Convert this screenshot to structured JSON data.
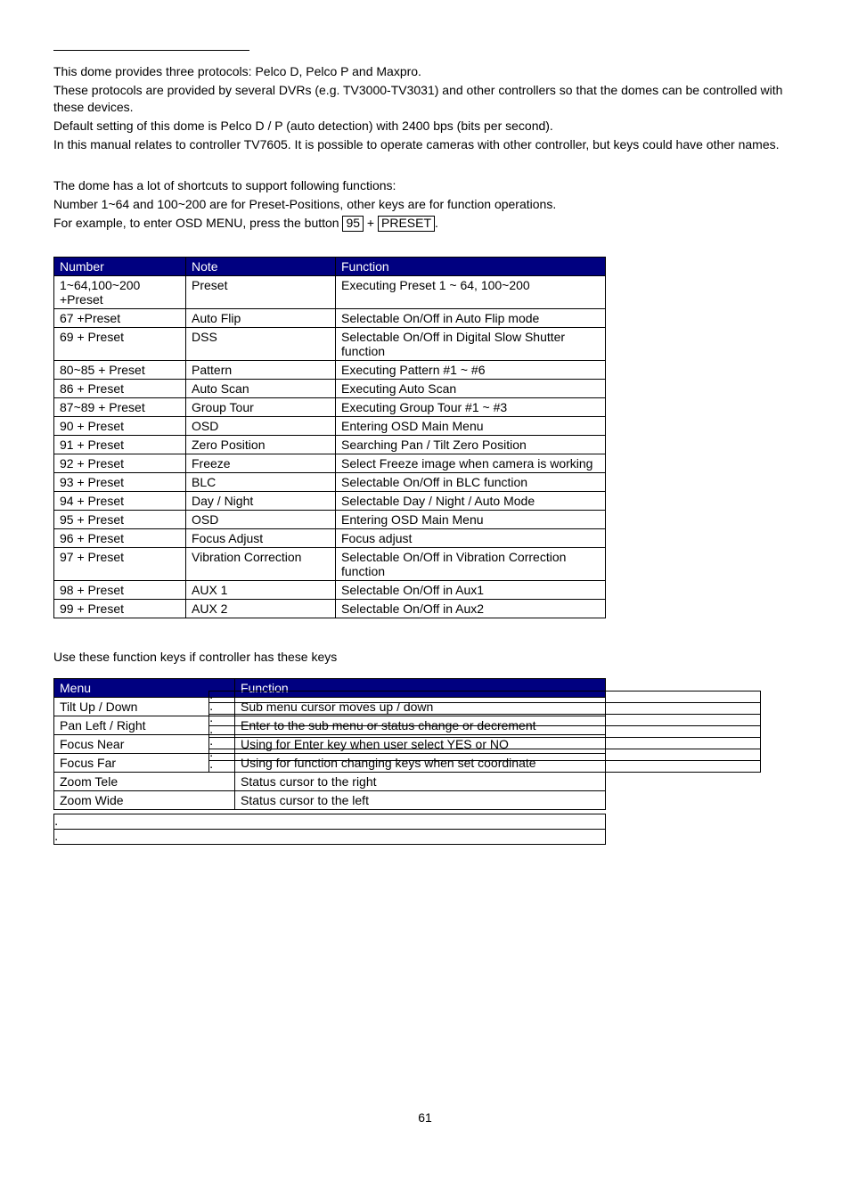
{
  "intro": {
    "p1": "This dome provides three protocols: Pelco D, Pelco P and Maxpro.",
    "p2": "These protocols are provided by several DVRs (e.g. TV3000-TV3031) and other controllers so that the domes can be controlled with these devices.",
    "p3": "Default setting of this dome is Pelco D / P (auto detection) with 2400 bps (bits per second).",
    "p4": "In this manual relates to controller TV7605. It is possible to operate cameras with other controller, but keys could have other names."
  },
  "shortcuts_intro": {
    "p1": "The dome has a lot of shortcuts to support following functions:",
    "p2": "Number 1~64 and 100~200 are for Preset-Positions, other keys are for function operations.",
    "p3a": "For example, to enter OSD MENU, press the button ",
    "p3_key1": "95",
    "p3_plus": " + ",
    "p3_key2": "PRESET",
    "p3_dot": "."
  },
  "table1": {
    "headers": {
      "number": "Number",
      "note": "Note",
      "function": "Function"
    },
    "rows": [
      {
        "number": "1~64,100~200 +Preset",
        "note": "Preset",
        "function": "Executing Preset 1 ~ 64, 100~200"
      },
      {
        "number": "67 +Preset",
        "note": "Auto Flip",
        "function": "Selectable On/Off in Auto Flip mode"
      },
      {
        "number": "69 + Preset",
        "note": "DSS",
        "function": "Selectable On/Off in Digital Slow Shutter function"
      },
      {
        "number": "80~85 + Preset",
        "note": "Pattern",
        "function": "Executing Pattern #1 ~ #6"
      },
      {
        "number": "86 + Preset",
        "note": "Auto Scan",
        "function": "Executing Auto Scan"
      },
      {
        "number": "87~89 + Preset",
        "note": "Group Tour",
        "function": "Executing Group Tour #1 ~ #3"
      },
      {
        "number": "90 + Preset",
        "note": "OSD",
        "function": "Entering OSD Main Menu"
      },
      {
        "number": "91 + Preset",
        "note": "Zero Position",
        "function": "Searching Pan / Tilt Zero Position"
      },
      {
        "number": "92 + Preset",
        "note": "Freeze",
        "function": "Select Freeze image when camera is working"
      },
      {
        "number": "93 + Preset",
        "note": "BLC",
        "function": "Selectable On/Off in BLC function"
      },
      {
        "number": "94 + Preset",
        "note": "Day / Night",
        "function": "Selectable Day / Night / Auto Mode"
      },
      {
        "number": "95 + Preset",
        "note": "OSD",
        "function": "Entering OSD Main Menu"
      },
      {
        "number": "96 + Preset",
        "note": "Focus Adjust",
        "function": "Focus adjust"
      },
      {
        "number": "97 + Preset",
        "note": "Vibration Correction",
        "function": "Selectable On/Off in Vibration Correction function"
      },
      {
        "number": "98 + Preset",
        "note": "AUX 1",
        "function": "Selectable On/Off in Aux1"
      },
      {
        "number": "99 + Preset",
        "note": "AUX 2",
        "function": "Selectable On/Off in Aux2"
      }
    ]
  },
  "table2_intro": "Use these function keys if controller has these keys",
  "table2": {
    "headers": {
      "menu": "Menu",
      "function": "Function"
    },
    "rows": [
      {
        "menu": "Tilt Up / Down",
        "function": "Sub menu cursor moves up / down"
      },
      {
        "menu": "Pan Left / Right",
        "function": "Enter to the sub menu or status change or decrement"
      },
      {
        "menu": "Focus Near",
        "function": "Using for Enter key when user select YES or NO"
      },
      {
        "menu": "Focus Far",
        "function": "Using for function changing keys when set coordinate"
      },
      {
        "menu": "Zoom Tele",
        "function": "Status cursor to the right"
      },
      {
        "menu": "Zoom Wide",
        "function": "Status cursor to the left"
      }
    ]
  },
  "page_number": "61",
  "side_box_rows": 7,
  "below_box_rows": 2
}
